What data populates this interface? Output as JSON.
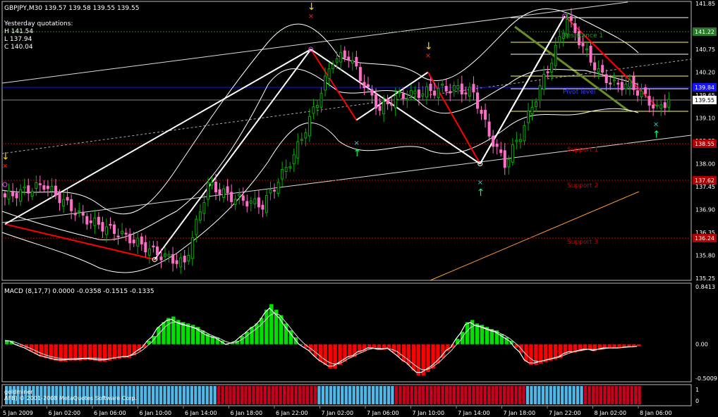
{
  "header": {
    "symbol_line": "GBPJPY,M30  139.57 139.58 139.55 139.55",
    "yesterday_title": "Yesterday quotations:",
    "yesterday_h": "H 141.54",
    "yesterday_l": "L 137.94",
    "yesterday_c": "C 140.04"
  },
  "macd_panel": {
    "label": "MACD (8,17,7) 0.0000 -0.0358 -0.1515 -0.1335",
    "axis_labels": [
      "0.8413",
      "0.00",
      "-0.5009"
    ]
  },
  "bottom_panel": {
    "label_line1": "goldminer",
    "label_line2": "AFB) © 2001-2008 MetaQuotes Software Corp.",
    "axis_labels": [
      "1",
      "0"
    ]
  },
  "levels": {
    "resistance1": "Resistance 1",
    "pivot": "Pivot level",
    "support1": "Support 1",
    "support2": "Support 2",
    "support3": "Support 3",
    "resistance_tag": "141.22",
    "pivot_tag": "139.84",
    "support1_tag": "138.55",
    "support2_tag": "137.62",
    "support3_tag": "136.24",
    "current_tag": "139.55"
  },
  "colors": {
    "bull": "#00b000",
    "bear": "#ff6ec7",
    "zigzag_red": "#ff0000",
    "zigzag_white": "#ffffff",
    "bands": "#ffffff",
    "macd_pos": "#00e000",
    "macd_neg": "#ff0000",
    "bottom_blue": "#4fb8e8",
    "bottom_red": "#c8001e",
    "trend_orange": "#ff9933",
    "pivot_blue": "#1414ff",
    "support_red": "#cc0000",
    "resistance_green": "#2a7a2a"
  },
  "chart_data": [
    {
      "type": "candlestick",
      "title": "GBPJPY,M30",
      "y_ticks": [
        "141.85",
        "141.22",
        "140.75",
        "140.20",
        "139.65",
        "139.10",
        "138.55",
        "138.00",
        "137.45",
        "136.90",
        "136.35",
        "135.80",
        "135.25"
      ],
      "ylim": [
        135.25,
        141.85
      ],
      "x_ticks": [
        "5 Jan 2009",
        "6 Jan 02:00",
        "6 Jan 06:00",
        "6 Jan 10:00",
        "6 Jan 14:00",
        "6 Jan 18:00",
        "6 Jan 22:00",
        "7 Jan 02:00",
        "7 Jan 06:00",
        "7 Jan 10:00",
        "7 Jan 14:00",
        "7 Jan 18:00",
        "7 Jan 22:00",
        "8 Jan 02:00",
        "8 Jan 06:00"
      ],
      "close_path": [
        [
          0,
          137.2
        ],
        [
          10,
          137.5
        ],
        [
          20,
          136.7
        ],
        [
          30,
          136.3
        ],
        [
          40,
          135.8
        ],
        [
          46,
          135.6
        ],
        [
          52,
          137.5
        ],
        [
          58,
          137.2
        ],
        [
          66,
          137.0
        ],
        [
          74,
          138.2
        ],
        [
          80,
          139.5
        ],
        [
          84,
          140.5
        ],
        [
          88,
          140.6
        ],
        [
          92,
          139.9
        ],
        [
          96,
          139.3
        ],
        [
          100,
          139.6
        ],
        [
          106,
          139.7
        ],
        [
          112,
          139.8
        ],
        [
          116,
          139.8
        ],
        [
          120,
          139.7
        ],
        [
          124,
          138.7
        ],
        [
          128,
          138.0
        ],
        [
          132,
          138.7
        ],
        [
          136,
          139.6
        ],
        [
          140,
          140.5
        ],
        [
          144,
          141.5
        ],
        [
          148,
          140.8
        ],
        [
          152,
          140.2
        ],
        [
          156,
          139.9
        ],
        [
          160,
          139.9
        ],
        [
          164,
          139.6
        ],
        [
          167,
          139.3
        ],
        [
          170,
          139.55
        ]
      ],
      "zigzag_points": [
        [
          0,
          136.55
        ],
        [
          46,
          135.7
        ],
        [
          94,
          140.75
        ],
        [
          108,
          139.05
        ],
        [
          130,
          140.2
        ],
        [
          146,
          138.0
        ],
        [
          172,
          141.55
        ],
        [
          200,
          139.4
        ]
      ],
      "signals": [
        {
          "type": "down-arrow",
          "x": 0,
          "y": 138.1
        },
        {
          "type": "down-arrow",
          "x": 94,
          "y": 141.7
        },
        {
          "type": "down-arrow",
          "x": 130,
          "y": 140.75
        },
        {
          "type": "up-arrow",
          "x": 108,
          "y": 138.45
        },
        {
          "type": "up-arrow",
          "x": 146,
          "y": 137.5
        },
        {
          "type": "up-arrow",
          "x": 200,
          "y": 138.9
        }
      ]
    },
    {
      "type": "bar",
      "title": "MACD (8,17,7)",
      "ylim": [
        -0.5009,
        0.8413
      ],
      "series": [
        {
          "name": "MACD",
          "values": [
            0.06,
            0.05,
            0.0,
            -0.03,
            -0.06,
            -0.1,
            -0.14,
            -0.18,
            -0.2,
            -0.22,
            -0.24,
            -0.25,
            -0.25,
            -0.24,
            -0.24,
            -0.24,
            -0.23,
            -0.23,
            -0.24,
            -0.25,
            -0.25,
            -0.24,
            -0.22,
            -0.21,
            -0.2,
            -0.2,
            -0.16,
            -0.1,
            -0.05,
            0.05,
            0.12,
            0.25,
            0.32,
            0.38,
            0.4,
            0.35,
            0.32,
            0.3,
            0.28,
            0.25,
            0.2,
            0.15,
            0.12,
            0.1,
            0.05,
            0.0,
            0.02,
            0.05,
            0.12,
            0.18,
            0.25,
            0.3,
            0.38,
            0.5,
            0.58,
            0.5,
            0.42,
            0.3,
            0.2,
            0.1,
            0.0,
            -0.05,
            -0.1,
            -0.18,
            -0.25,
            -0.3,
            -0.35,
            -0.35,
            -0.3,
            -0.25,
            -0.2,
            -0.18,
            -0.12,
            -0.1,
            -0.06,
            -0.06,
            -0.08,
            -0.08,
            -0.06,
            -0.12,
            -0.18,
            -0.25,
            -0.3,
            -0.38,
            -0.45,
            -0.45,
            -0.4,
            -0.35,
            -0.28,
            -0.2,
            -0.1,
            -0.05,
            0.08,
            0.18,
            0.32,
            0.35,
            0.3,
            0.28,
            0.25,
            0.22,
            0.2,
            0.15,
            0.1,
            0.05,
            -0.05,
            -0.12,
            -0.25,
            -0.3,
            -0.3,
            -0.28,
            -0.26,
            -0.24,
            -0.22,
            -0.2,
            -0.15,
            -0.12,
            -0.12,
            -0.1,
            -0.08,
            -0.08,
            -0.1,
            -0.08,
            -0.06,
            -0.06,
            -0.06,
            -0.06,
            -0.05,
            -0.04,
            -0.04,
            -0.03
          ]
        }
      ]
    },
    {
      "type": "bar",
      "title": "goldminer",
      "ylim": [
        0,
        1
      ],
      "blue_red_segments": [
        [
          "blue",
          0,
          55
        ],
        [
          "red",
          55,
          81
        ],
        [
          "blue",
          81,
          101
        ],
        [
          "red",
          101,
          135
        ],
        [
          "blue",
          135,
          150
        ],
        [
          "red",
          150,
          165
        ]
      ]
    }
  ]
}
